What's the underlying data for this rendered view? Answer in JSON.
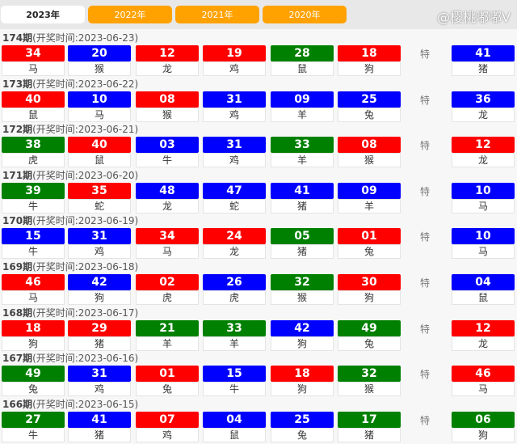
{
  "tabs": [
    "2023年",
    "2022年",
    "2021年",
    "2020年"
  ],
  "active_tab": 0,
  "special_label": "特",
  "watermark": "@樱桃嘟嘟V",
  "colors": {
    "red": "#ff0000",
    "blue": "#0000ff",
    "green": "#008000",
    "tab": "#ffa200"
  },
  "draws": [
    {
      "period": "174期",
      "date": "(开奖时间:2023-06-23)",
      "balls": [
        [
          "34",
          "red",
          "马"
        ],
        [
          "20",
          "blue",
          "猴"
        ],
        [
          "12",
          "red",
          "龙"
        ],
        [
          "19",
          "red",
          "鸡"
        ],
        [
          "28",
          "green",
          "鼠"
        ],
        [
          "18",
          "red",
          "狗"
        ]
      ],
      "special": [
        "41",
        "blue",
        "猪"
      ]
    },
    {
      "period": "173期",
      "date": "(开奖时间:2023-06-22)",
      "balls": [
        [
          "40",
          "red",
          "鼠"
        ],
        [
          "10",
          "blue",
          "马"
        ],
        [
          "08",
          "red",
          "猴"
        ],
        [
          "31",
          "blue",
          "鸡"
        ],
        [
          "09",
          "blue",
          "羊"
        ],
        [
          "25",
          "blue",
          "兔"
        ]
      ],
      "special": [
        "36",
        "blue",
        "龙"
      ]
    },
    {
      "period": "172期",
      "date": "(开奖时间:2023-06-21)",
      "balls": [
        [
          "38",
          "green",
          "虎"
        ],
        [
          "40",
          "red",
          "鼠"
        ],
        [
          "03",
          "blue",
          "牛"
        ],
        [
          "31",
          "blue",
          "鸡"
        ],
        [
          "33",
          "green",
          "羊"
        ],
        [
          "08",
          "red",
          "猴"
        ]
      ],
      "special": [
        "12",
        "red",
        "龙"
      ]
    },
    {
      "period": "171期",
      "date": "(开奖时间:2023-06-20)",
      "balls": [
        [
          "39",
          "green",
          "牛"
        ],
        [
          "35",
          "red",
          "蛇"
        ],
        [
          "48",
          "blue",
          "龙"
        ],
        [
          "47",
          "blue",
          "蛇"
        ],
        [
          "41",
          "blue",
          "猪"
        ],
        [
          "09",
          "blue",
          "羊"
        ]
      ],
      "special": [
        "10",
        "blue",
        "马"
      ]
    },
    {
      "period": "170期",
      "date": "(开奖时间:2023-06-19)",
      "balls": [
        [
          "15",
          "blue",
          "牛"
        ],
        [
          "31",
          "blue",
          "鸡"
        ],
        [
          "34",
          "red",
          "马"
        ],
        [
          "24",
          "red",
          "龙"
        ],
        [
          "05",
          "green",
          "猪"
        ],
        [
          "01",
          "red",
          "兔"
        ]
      ],
      "special": [
        "10",
        "blue",
        "马"
      ]
    },
    {
      "period": "169期",
      "date": "(开奖时间:2023-06-18)",
      "balls": [
        [
          "46",
          "red",
          "马"
        ],
        [
          "42",
          "blue",
          "狗"
        ],
        [
          "02",
          "red",
          "虎"
        ],
        [
          "26",
          "blue",
          "虎"
        ],
        [
          "32",
          "green",
          "猴"
        ],
        [
          "30",
          "red",
          "狗"
        ]
      ],
      "special": [
        "04",
        "blue",
        "鼠"
      ]
    },
    {
      "period": "168期",
      "date": "(开奖时间:2023-06-17)",
      "balls": [
        [
          "18",
          "red",
          "狗"
        ],
        [
          "29",
          "red",
          "猪"
        ],
        [
          "21",
          "green",
          "羊"
        ],
        [
          "33",
          "green",
          "羊"
        ],
        [
          "42",
          "blue",
          "狗"
        ],
        [
          "49",
          "green",
          "兔"
        ]
      ],
      "special": [
        "12",
        "red",
        "龙"
      ]
    },
    {
      "period": "167期",
      "date": "(开奖时间:2023-06-16)",
      "balls": [
        [
          "49",
          "green",
          "兔"
        ],
        [
          "31",
          "blue",
          "鸡"
        ],
        [
          "01",
          "red",
          "兔"
        ],
        [
          "15",
          "blue",
          "牛"
        ],
        [
          "18",
          "red",
          "狗"
        ],
        [
          "32",
          "green",
          "猴"
        ]
      ],
      "special": [
        "46",
        "red",
        "马"
      ]
    },
    {
      "period": "166期",
      "date": "(开奖时间:2023-06-15)",
      "balls": [
        [
          "27",
          "green",
          "牛"
        ],
        [
          "41",
          "blue",
          "猪"
        ],
        [
          "07",
          "red",
          "鸡"
        ],
        [
          "04",
          "blue",
          "鼠"
        ],
        [
          "25",
          "blue",
          "兔"
        ],
        [
          "17",
          "green",
          "猪"
        ]
      ],
      "special": [
        "06",
        "green",
        "狗"
      ]
    }
  ]
}
